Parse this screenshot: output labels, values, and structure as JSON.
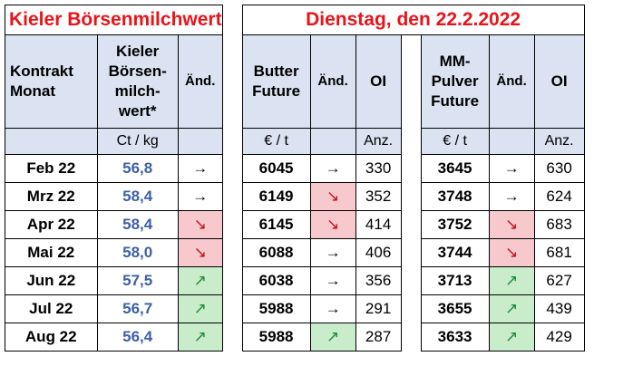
{
  "title_left": "Kieler Börsenmilchwert",
  "title_right": "Dienstag, den 22.2.2022",
  "headers": {
    "kontrakt": "Kontrakt Monat",
    "kbmw": "Kieler Börsen-milch-wert*",
    "aend1": "Änd.",
    "butter": "Butter Future",
    "aend2": "Änd.",
    "oi1": "OI",
    "mmp": "MM-Pulver Future",
    "aend3": "Änd.",
    "oi2": "OI"
  },
  "units": {
    "kbmw": "Ct / kg",
    "butter": "€ / t",
    "oi1": "Anz.",
    "mmp": "€ / t",
    "oi2": "Anz."
  },
  "icons": {
    "flat": "→",
    "down": "↘",
    "up": "↗"
  },
  "rows": [
    {
      "month": "Feb 22",
      "kbmw": "56,8",
      "kbmw_chg": "flat",
      "butter": "6045",
      "butter_chg": "flat",
      "oi1": "330",
      "mmp": "3645",
      "mmp_chg": "flat",
      "oi2": "630"
    },
    {
      "month": "Mrz 22",
      "kbmw": "58,4",
      "kbmw_chg": "flat",
      "butter": "6149",
      "butter_chg": "down",
      "oi1": "352",
      "mmp": "3748",
      "mmp_chg": "flat",
      "oi2": "624"
    },
    {
      "month": "Apr 22",
      "kbmw": "58,4",
      "kbmw_chg": "down",
      "butter": "6145",
      "butter_chg": "down",
      "oi1": "414",
      "mmp": "3752",
      "mmp_chg": "down",
      "oi2": "683"
    },
    {
      "month": "Mai 22",
      "kbmw": "58,0",
      "kbmw_chg": "down",
      "butter": "6088",
      "butter_chg": "flat",
      "oi1": "406",
      "mmp": "3744",
      "mmp_chg": "down",
      "oi2": "681"
    },
    {
      "month": "Jun 22",
      "kbmw": "57,5",
      "kbmw_chg": "up",
      "butter": "6038",
      "butter_chg": "flat",
      "oi1": "356",
      "mmp": "3713",
      "mmp_chg": "up",
      "oi2": "627"
    },
    {
      "month": "Jul 22",
      "kbmw": "56,7",
      "kbmw_chg": "up",
      "butter": "5988",
      "butter_chg": "flat",
      "oi1": "291",
      "mmp": "3655",
      "mmp_chg": "up",
      "oi2": "439"
    },
    {
      "month": "Aug 22",
      "kbmw": "56,4",
      "kbmw_chg": "up",
      "butter": "5988",
      "butter_chg": "up",
      "oi1": "287",
      "mmp": "3633",
      "mmp_chg": "up",
      "oi2": "429"
    }
  ]
}
